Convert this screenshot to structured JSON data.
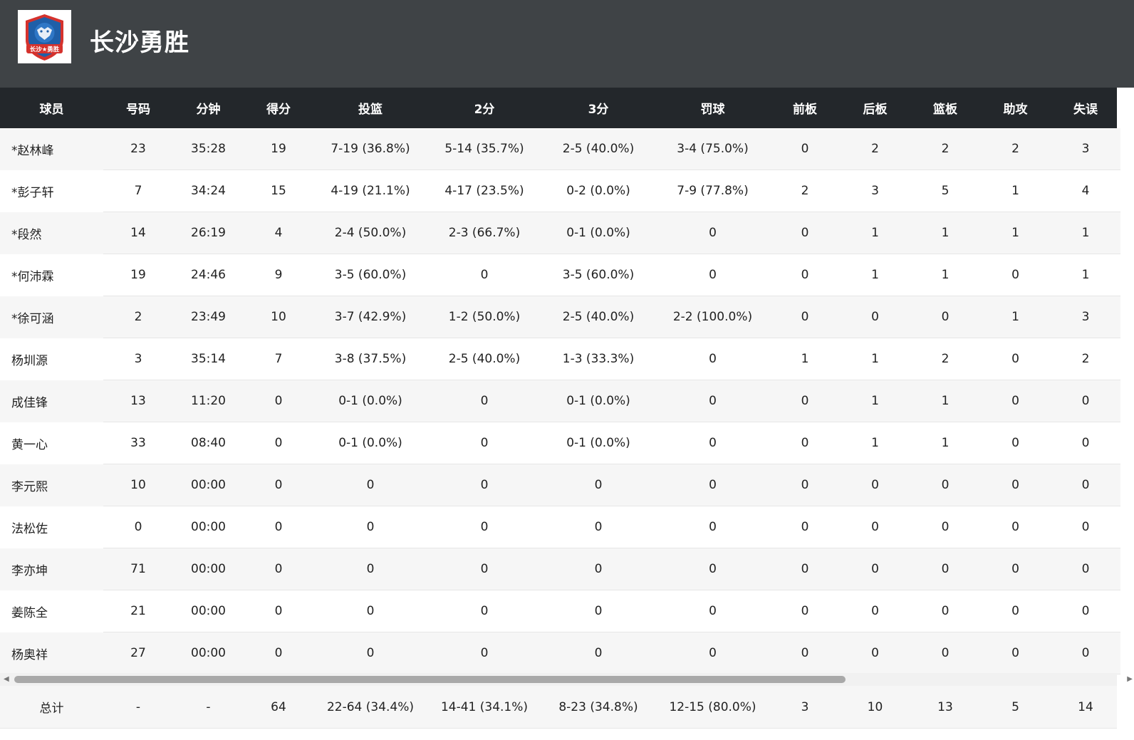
{
  "team": {
    "name": "长沙勇胜",
    "logo_text": "长沙★勇胜"
  },
  "columns": [
    "球员",
    "号码",
    "分钟",
    "得分",
    "投篮",
    "2分",
    "3分",
    "罚球",
    "前板",
    "后板",
    "篮板",
    "助攻",
    "失误"
  ],
  "players": [
    [
      "*赵林峰",
      "23",
      "35:28",
      "19",
      "7-19 (36.8%)",
      "5-14 (35.7%)",
      "2-5 (40.0%)",
      "3-4 (75.0%)",
      "0",
      "2",
      "2",
      "2",
      "3"
    ],
    [
      "*彭子轩",
      "7",
      "34:24",
      "15",
      "4-19 (21.1%)",
      "4-17 (23.5%)",
      "0-2 (0.0%)",
      "7-9 (77.8%)",
      "2",
      "3",
      "5",
      "1",
      "4"
    ],
    [
      "*段然",
      "14",
      "26:19",
      "4",
      "2-4 (50.0%)",
      "2-3 (66.7%)",
      "0-1 (0.0%)",
      "0",
      "0",
      "1",
      "1",
      "1",
      "1"
    ],
    [
      "*何沛霖",
      "19",
      "24:46",
      "9",
      "3-5 (60.0%)",
      "0",
      "3-5 (60.0%)",
      "0",
      "0",
      "1",
      "1",
      "0",
      "1"
    ],
    [
      "*徐可涵",
      "2",
      "23:49",
      "10",
      "3-7 (42.9%)",
      "1-2 (50.0%)",
      "2-5 (40.0%)",
      "2-2 (100.0%)",
      "0",
      "0",
      "0",
      "1",
      "3"
    ],
    [
      "杨圳源",
      "3",
      "35:14",
      "7",
      "3-8 (37.5%)",
      "2-5 (40.0%)",
      "1-3 (33.3%)",
      "0",
      "1",
      "1",
      "2",
      "0",
      "2"
    ],
    [
      "成佳锋",
      "13",
      "11:20",
      "0",
      "0-1 (0.0%)",
      "0",
      "0-1 (0.0%)",
      "0",
      "0",
      "1",
      "1",
      "0",
      "0"
    ],
    [
      "黄一心",
      "33",
      "08:40",
      "0",
      "0-1 (0.0%)",
      "0",
      "0-1 (0.0%)",
      "0",
      "0",
      "1",
      "1",
      "0",
      "0"
    ],
    [
      "李元熙",
      "10",
      "00:00",
      "0",
      "0",
      "0",
      "0",
      "0",
      "0",
      "0",
      "0",
      "0",
      "0"
    ],
    [
      "法松佐",
      "0",
      "00:00",
      "0",
      "0",
      "0",
      "0",
      "0",
      "0",
      "0",
      "0",
      "0",
      "0"
    ],
    [
      "李亦坤",
      "71",
      "00:00",
      "0",
      "0",
      "0",
      "0",
      "0",
      "0",
      "0",
      "0",
      "0",
      "0"
    ],
    [
      "姜陈全",
      "21",
      "00:00",
      "0",
      "0",
      "0",
      "0",
      "0",
      "0",
      "0",
      "0",
      "0",
      "0"
    ],
    [
      "杨奥祥",
      "27",
      "00:00",
      "0",
      "0",
      "0",
      "0",
      "0",
      "0",
      "0",
      "0",
      "0",
      "0"
    ]
  ],
  "totals": [
    "总计",
    "-",
    "-",
    "64",
    "22-64 (34.4%)",
    "14-41 (34.1%)",
    "8-23 (34.8%)",
    "12-15 (80.0%)",
    "3",
    "10",
    "13",
    "5",
    "14"
  ],
  "scrollbar": {
    "arrow_left": "◀",
    "arrow_right": "▶"
  },
  "colors": {
    "header_bg": "#3f4346",
    "table_head_bg": "#23272b",
    "row_alt": "#f6f6f6",
    "logo_blue": "#1f5fa8",
    "logo_red": "#d5322d"
  }
}
